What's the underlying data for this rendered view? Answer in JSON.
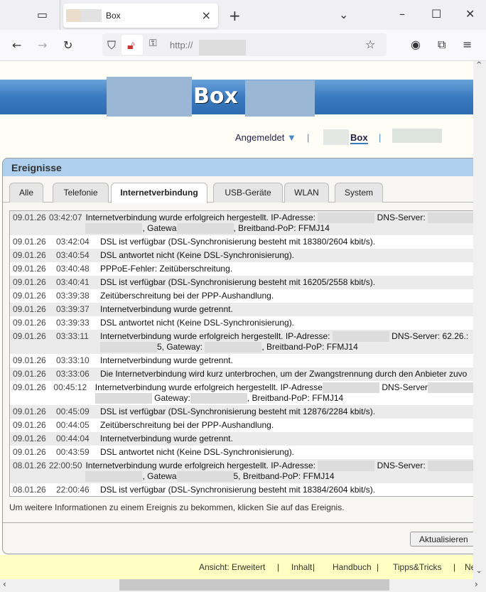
{
  "browser": {
    "tab_title": "Box",
    "url": "http://",
    "icons": [
      "tab-overview-icon",
      "close-icon",
      "new-tab-icon",
      "tab-list-icon",
      "minimize-icon",
      "maximize-icon",
      "window-close-icon",
      "back-icon",
      "forward-icon",
      "reload-icon",
      "shield-icon",
      "insecure-lock-icon",
      "key-icon",
      "star-icon",
      "account-icon",
      "extensions-icon",
      "menu-icon"
    ]
  },
  "header": {
    "logo_text": "Box",
    "login_status": "Angemeldet",
    "nav_box": "Box",
    "accent": "#3a7ac0"
  },
  "panel": {
    "title": "Ereignisse",
    "tabs": [
      {
        "label": "Alle"
      },
      {
        "label": "Telefonie"
      },
      {
        "label": "Internetverbindung",
        "active": true
      },
      {
        "label": "USB-Geräte"
      },
      {
        "label": "WLAN"
      },
      {
        "label": "System"
      }
    ],
    "events": [
      {
        "date": "09.01.26",
        "time": "03:42:07",
        "lines": [
          [
            "Internetverbindung wurde erfolgreich hergestellt. IP-Adresse: ",
            null,
            " DNS-Server: ",
            null
          ],
          [
            null,
            ", Gatewa",
            null,
            ", Breitband-PoP: FFMJ14"
          ]
        ]
      },
      {
        "date": "09.01.26",
        "time": "03:42:04",
        "lines": [
          [
            "DSL ist verfügbar (DSL-Synchronisierung besteht mit 18380/2604 kbit/s)."
          ]
        ]
      },
      {
        "date": "09.01.26",
        "time": "03:40:54",
        "lines": [
          [
            "DSL antwortet nicht (Keine DSL-Synchronisierung)."
          ]
        ]
      },
      {
        "date": "09.01.26",
        "time": "03:40:48",
        "lines": [
          [
            "PPPoE-Fehler: Zeitüberschreitung."
          ]
        ]
      },
      {
        "date": "09.01.26",
        "time": "03:40:41",
        "lines": [
          [
            "DSL ist verfügbar (DSL-Synchronisierung besteht mit 16205/2558 kbit/s)."
          ]
        ]
      },
      {
        "date": "09.01.26",
        "time": "03:39:38",
        "lines": [
          [
            "Zeitüberschreitung bei der PPP-Aushandlung."
          ]
        ]
      },
      {
        "date": "09.01.26",
        "time": "03:39:37",
        "lines": [
          [
            "Internetverbindung wurde getrennt."
          ]
        ]
      },
      {
        "date": "09.01.26",
        "time": "03:39:33",
        "lines": [
          [
            "DSL antwortet nicht (Keine DSL-Synchronisierung)."
          ]
        ]
      },
      {
        "date": "09.01.26",
        "time": "03:33:11",
        "lines": [
          [
            "Internetverbindung wurde erfolgreich hergestellt. IP-Adresse: ",
            null,
            " DNS-Server: 62.26.:"
          ],
          [
            null,
            "5, Gateway: ",
            null,
            ", Breitband-PoP: FFMJ14"
          ]
        ]
      },
      {
        "date": "09.01.26",
        "time": "03:33:10",
        "lines": [
          [
            "Internetverbindung wurde getrennt."
          ]
        ]
      },
      {
        "date": "09.01.26",
        "time": "03:33:06",
        "lines": [
          [
            "Die Internetverbindung wird kurz unterbrochen, um der Zwangstrennung durch den Anbieter zuvo"
          ]
        ]
      },
      {
        "date": "09.01.26",
        "time": "00:45:12",
        "lines": [
          [
            "Internetverbindung wurde erfolgreich hergestellt. IP-Adresse",
            null,
            " DNS-Server",
            null
          ],
          [
            null,
            " Gateway:",
            null,
            ", Breitband-PoP: FFMJ14"
          ]
        ]
      },
      {
        "date": "09.01.26",
        "time": "00:45:09",
        "lines": [
          [
            "DSL ist verfügbar (DSL-Synchronisierung besteht mit 12876/2284 kbit/s)."
          ]
        ]
      },
      {
        "date": "09.01.26",
        "time": "00:44:05",
        "lines": [
          [
            "Zeitüberschreitung bei der PPP-Aushandlung."
          ]
        ]
      },
      {
        "date": "09.01.26",
        "time": "00:44:04",
        "lines": [
          [
            "Internetverbindung wurde getrennt."
          ]
        ]
      },
      {
        "date": "09.01.26",
        "time": "00:43:59",
        "lines": [
          [
            "DSL antwortet nicht (Keine DSL-Synchronisierung)."
          ]
        ]
      },
      {
        "date": "08.01.26",
        "time": "22:00:50",
        "lines": [
          [
            "Internetverbindung wurde erfolgreich hergestellt. IP-Adresse: ",
            null,
            " DNS-Server: ",
            null
          ],
          [
            null,
            ", Gatewa",
            null,
            "5, Breitband-PoP: FFMJ14"
          ]
        ]
      },
      {
        "date": "08.01.26",
        "time": "22:00:46",
        "lines": [
          [
            "DSL ist verfügbar (DSL-Synchronisierung besteht mit 18384/2604 kbit/s)."
          ]
        ]
      }
    ],
    "note": "Um weitere Informationen zu einem Ereignis zu bekommen, klicken Sie auf das Ereignis.",
    "refresh_label": "Aktualisieren"
  },
  "footer": {
    "links": [
      "Ansicht: Erweitert",
      "|",
      "Inhalt",
      "|",
      "Handbuch",
      "|",
      "Tipps&Tricks",
      "|",
      "Ne"
    ]
  }
}
